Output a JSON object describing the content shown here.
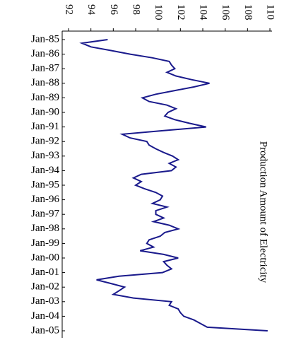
{
  "chart_data": {
    "type": "line",
    "title": "Production Amount of Electricity",
    "categories": [
      "Jan-85",
      null,
      null,
      null,
      "Jan-86",
      null,
      null,
      null,
      "Jan-87",
      null,
      null,
      null,
      "Jan-88",
      null,
      null,
      null,
      "Jan-89",
      null,
      null,
      null,
      "Jan-90",
      null,
      null,
      null,
      "Jan-91",
      null,
      null,
      null,
      "Jan-92",
      null,
      null,
      null,
      "Jan-93",
      null,
      null,
      null,
      "Jan-94",
      null,
      null,
      null,
      "Jan-95",
      null,
      null,
      null,
      "Jan-96",
      null,
      null,
      null,
      "Jan-97",
      null,
      null,
      null,
      "Jan-98",
      null,
      null,
      null,
      "Jan-99",
      null,
      null,
      null,
      "Jan-00",
      null,
      null,
      null,
      "Jan-01",
      null,
      null,
      null,
      "Jan-02",
      null,
      null,
      null,
      "Jan-03",
      null,
      null,
      null,
      "Jan-04",
      null,
      null,
      null,
      "Jan-05"
    ],
    "series": [
      {
        "color": "#1a1a8c",
        "values": [
          95.5,
          93.2,
          94.0,
          95.8,
          97.5,
          99.5,
          101.0,
          101.2,
          101.5,
          100.8,
          101.6,
          103.0,
          104.6,
          103.2,
          101.5,
          99.8,
          98.6,
          99.2,
          100.8,
          101.6,
          100.9,
          100.6,
          101.5,
          102.8,
          104.3,
          100.5,
          96.8,
          97.5,
          99.0,
          99.2,
          99.8,
          100.5,
          101.3,
          101.8,
          101.0,
          101.6,
          101.2,
          98.5,
          97.8,
          98.5,
          98.0,
          98.8,
          99.8,
          100.4,
          100.2,
          99.5,
          100.8,
          99.8,
          99.8,
          100.5,
          99.6,
          101.0,
          101.8,
          100.6,
          100.2,
          99.2,
          99.0,
          99.6,
          98.4,
          100.5,
          101.8,
          100.5,
          100.8,
          101.2,
          100.4,
          96.5,
          94.5,
          95.8,
          97.0,
          96.5,
          96.0,
          97.8,
          101.2,
          101.0,
          101.8,
          102.0,
          102.3,
          103.2,
          103.8,
          104.4,
          109.8
        ]
      }
    ],
    "ylim": [
      92,
      110
    ],
    "yticks": [
      92,
      94,
      96,
      98,
      100,
      102,
      104,
      106,
      108,
      110
    ],
    "grid": false
  }
}
